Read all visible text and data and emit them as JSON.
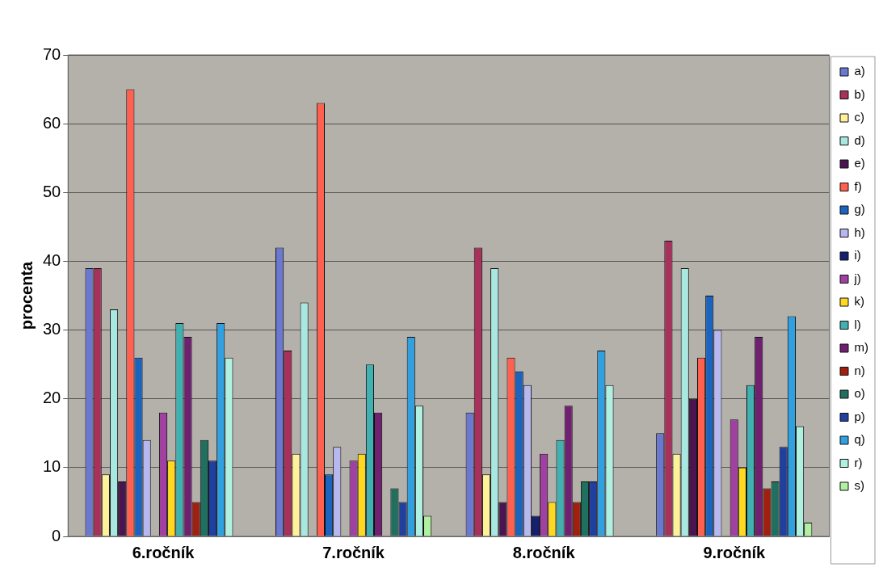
{
  "chart_data": {
    "type": "bar",
    "ylabel": "procenta",
    "categories": [
      "6.ročník",
      "7.ročník",
      "8.ročník",
      "9.ročník"
    ],
    "ylim": [
      0,
      70
    ],
    "yticks": [
      0,
      10,
      20,
      30,
      40,
      50,
      60,
      70
    ],
    "grid": "y",
    "legend": "right",
    "series": [
      {
        "name": "a)",
        "color": "#6b78d0",
        "values": [
          39,
          42,
          18,
          15
        ]
      },
      {
        "name": "b)",
        "color": "#a8305a",
        "values": [
          39,
          27,
          42,
          43
        ]
      },
      {
        "name": "c)",
        "color": "#fff09a",
        "values": [
          9,
          12,
          9,
          12
        ]
      },
      {
        "name": "d)",
        "color": "#a8e8e0",
        "values": [
          33,
          34,
          39,
          39
        ]
      },
      {
        "name": "e)",
        "color": "#4a1450",
        "values": [
          8,
          0,
          5,
          20
        ]
      },
      {
        "name": "f)",
        "color": "#ff6050",
        "values": [
          65,
          63,
          26,
          26
        ]
      },
      {
        "name": "g)",
        "color": "#1a64c0",
        "values": [
          26,
          9,
          24,
          35
        ]
      },
      {
        "name": "h)",
        "color": "#b8b8f0",
        "values": [
          14,
          13,
          22,
          30
        ]
      },
      {
        "name": "i)",
        "color": "#142070",
        "values": [
          0,
          0,
          3,
          0
        ]
      },
      {
        "name": "j)",
        "color": "#a040a0",
        "values": [
          18,
          11,
          12,
          17
        ]
      },
      {
        "name": "k)",
        "color": "#ffd820",
        "values": [
          11,
          12,
          5,
          10
        ]
      },
      {
        "name": "l)",
        "color": "#40b0b0",
        "values": [
          31,
          25,
          14,
          22
        ]
      },
      {
        "name": "m)",
        "color": "#702070",
        "values": [
          29,
          18,
          19,
          29
        ]
      },
      {
        "name": "n)",
        "color": "#a02010",
        "values": [
          5,
          0,
          5,
          7
        ]
      },
      {
        "name": "o)",
        "color": "#207060",
        "values": [
          14,
          7,
          8,
          8
        ]
      },
      {
        "name": "p)",
        "color": "#2040a0",
        "values": [
          11,
          5,
          8,
          13
        ]
      },
      {
        "name": "q)",
        "color": "#30a0e0",
        "values": [
          31,
          29,
          27,
          32
        ]
      },
      {
        "name": "r)",
        "color": "#b0f0e0",
        "values": [
          26,
          19,
          22,
          16
        ]
      },
      {
        "name": "s)",
        "color": "#b0f0a0",
        "values": [
          0,
          3,
          0,
          2
        ]
      }
    ]
  }
}
